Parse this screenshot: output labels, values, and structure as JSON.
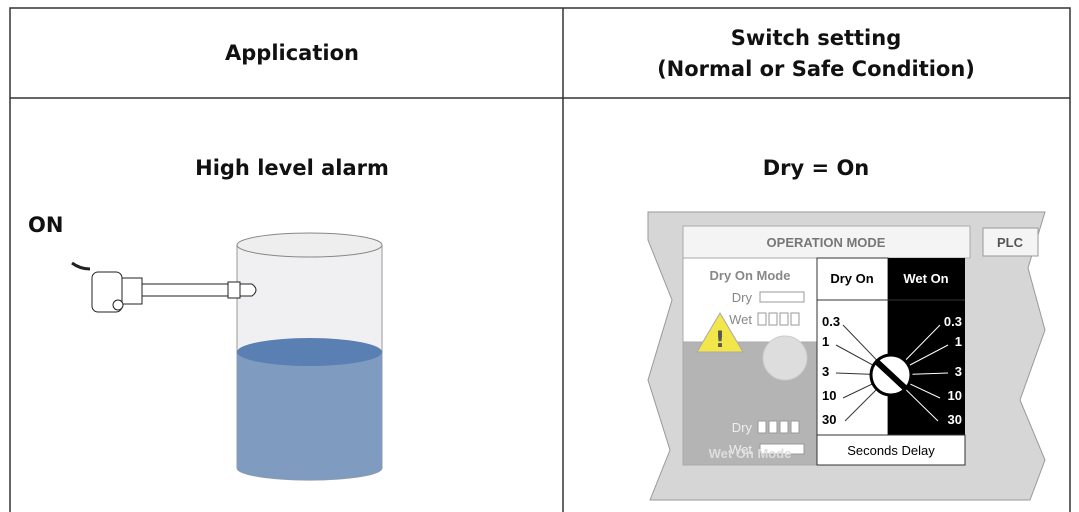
{
  "table": {
    "headers": {
      "application": "Application",
      "switch_setting": "Switch setting",
      "condition": "(Normal or Safe Condition)"
    },
    "rows": [
      {
        "application": "High level alarm",
        "switch_setting": "Dry = On"
      }
    ]
  },
  "illustration": {
    "label": "ON"
  },
  "panel": {
    "title": "OPERATION MODE",
    "plc": "PLC",
    "dry_on_mode": "Dry On Mode",
    "dry": "Dry",
    "wet": "Wet",
    "dry_on": "Dry On",
    "wet_on": "Wet On",
    "delays": [
      "0.3",
      "1",
      "3",
      "10",
      "30"
    ],
    "wet_on_mode": "Wet On Mode",
    "seconds_delay": "Seconds Delay"
  }
}
